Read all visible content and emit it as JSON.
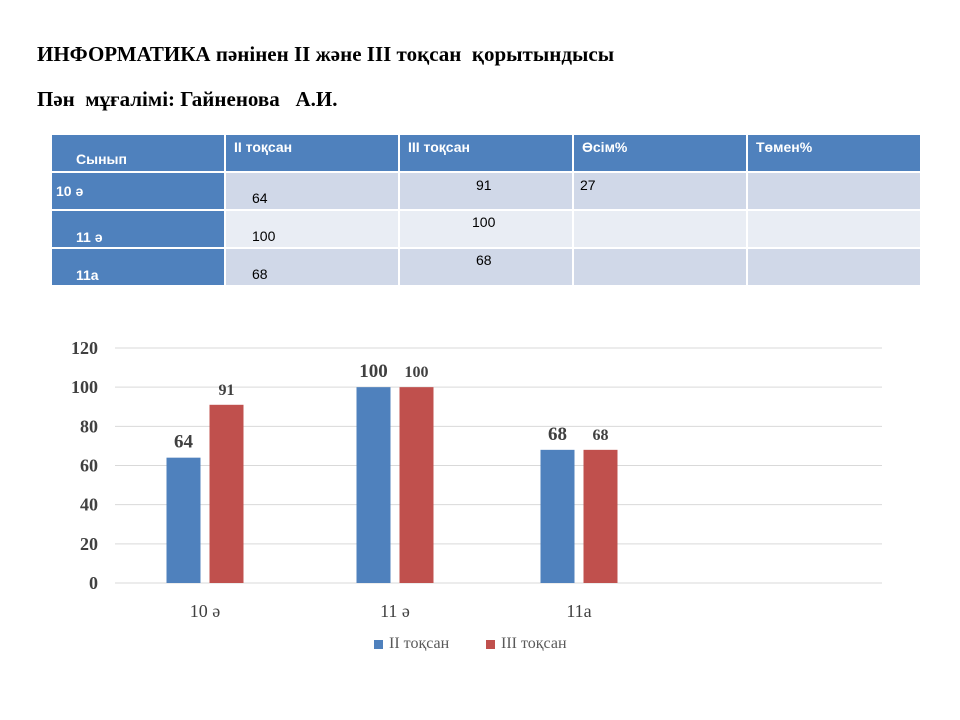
{
  "title": "ИНФОРМАТИКА пәнінен II және III тоқсан  қорытындысы",
  "teacher": "Пән  мұғалімі: Гайненова   А.И.",
  "table": {
    "headers": [
      "Сынып",
      "II тоқсан",
      "III тоқсан",
      "Өсім%",
      "Төмен%"
    ],
    "rows": [
      [
        "10 ә",
        "64",
        "91",
        "27",
        ""
      ],
      [
        "11 ә",
        "100",
        "100",
        "",
        ""
      ],
      [
        "11а",
        "68",
        "68",
        "",
        ""
      ]
    ]
  },
  "chart_data": {
    "type": "bar",
    "categories": [
      "10 ә",
      "11 ә",
      "11а"
    ],
    "series": [
      {
        "name": "II тоқсан",
        "values": [
          64,
          100,
          68
        ],
        "color": "#4f81bd"
      },
      {
        "name": "III тоқсан",
        "values": [
          91,
          100,
          68
        ],
        "color": "#c0504d"
      }
    ],
    "ylim": [
      0,
      120
    ],
    "yticks": [
      0,
      20,
      40,
      60,
      80,
      100,
      120
    ],
    "grid": true,
    "legend": "bottom",
    "title": "",
    "xlabel": "",
    "ylabel": ""
  }
}
